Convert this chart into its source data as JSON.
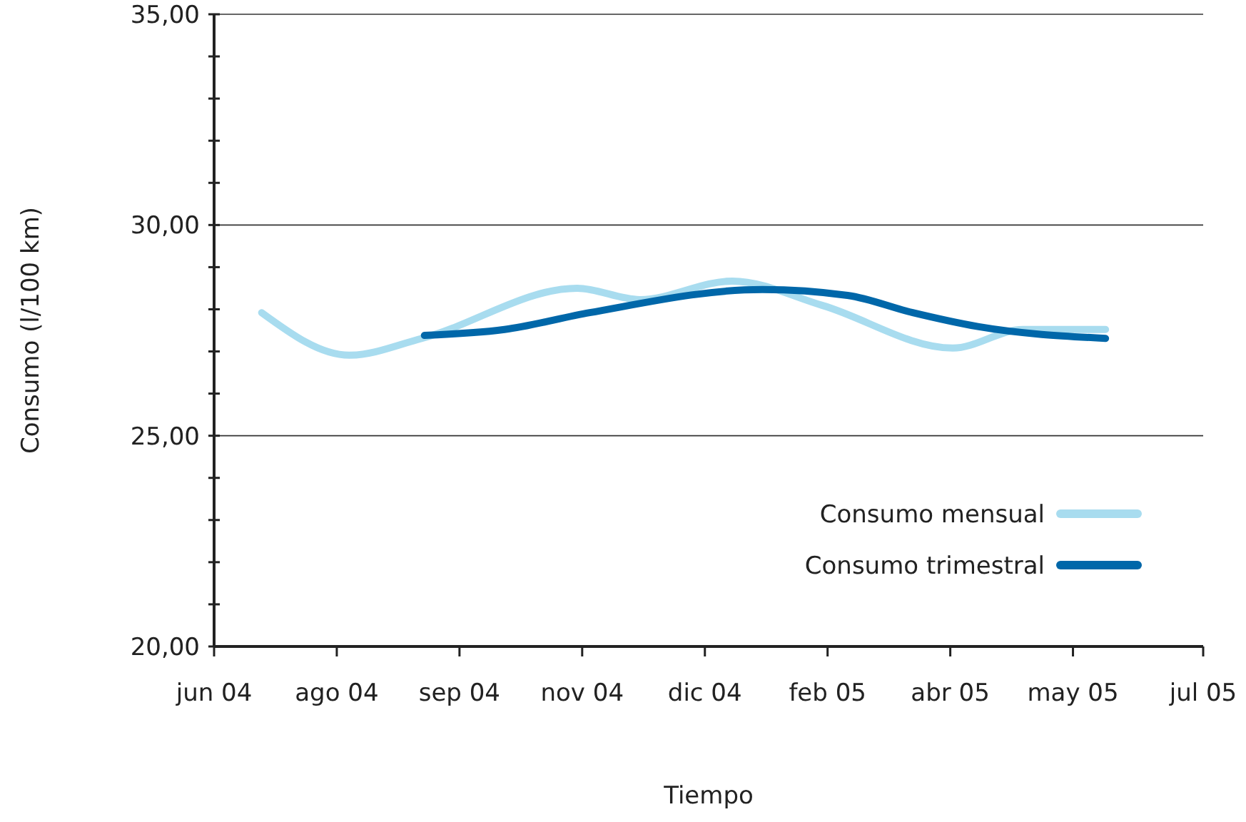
{
  "chart_data": {
    "type": "line",
    "xlabel": "Tiempo",
    "ylabel": "Consumo (l/100 km)",
    "xlim": [
      "2004-06-15",
      "2005-07-15"
    ],
    "xticks": [
      {
        "value": "2004-06-15",
        "label": "jun 04"
      },
      {
        "value": "2004-08-03",
        "label": "ago 04"
      },
      {
        "value": "2004-09-21",
        "label": "sep 04"
      },
      {
        "value": "2004-11-09",
        "label": "nov 04"
      },
      {
        "value": "2004-12-28",
        "label": "dic 04"
      },
      {
        "value": "2005-02-15",
        "label": "feb 05"
      },
      {
        "value": "2005-04-05",
        "label": "abr 05"
      },
      {
        "value": "2005-05-24",
        "label": "may 05"
      },
      {
        "value": "2005-07-15",
        "label": "jul 05"
      }
    ],
    "ylim": [
      20,
      35
    ],
    "yticks": [
      {
        "value": 20,
        "label": "20,00"
      },
      {
        "value": 21,
        "label": null
      },
      {
        "value": 22,
        "label": null
      },
      {
        "value": 23,
        "label": null
      },
      {
        "value": 24,
        "label": null
      },
      {
        "value": 25,
        "label": "25,00"
      },
      {
        "value": 26,
        "label": null
      },
      {
        "value": 27,
        "label": null
      },
      {
        "value": 28,
        "label": null
      },
      {
        "value": 29,
        "label": null
      },
      {
        "value": 30,
        "label": "30,00"
      },
      {
        "value": 31,
        "label": null
      },
      {
        "value": 32,
        "label": null
      },
      {
        "value": 33,
        "label": null
      },
      {
        "value": 34,
        "label": null
      },
      {
        "value": 35,
        "label": "35,00"
      }
    ],
    "grid": "y",
    "legend": "right",
    "marker": "none",
    "series": [
      {
        "name": "Consumo mensual",
        "color": "#a8dcef",
        "x": [
          "2004-07-04",
          "2004-08-08",
          "2004-09-06",
          "2004-11-07",
          "2004-12-02",
          "2005-01-08",
          "2005-02-13",
          "2005-04-06",
          "2005-05-04",
          "2005-06-06"
        ],
        "values": [
          27.92,
          26.91,
          27.31,
          28.5,
          28.23,
          28.67,
          28.09,
          27.08,
          27.52,
          27.52
        ]
      },
      {
        "name": "Consumo trimestral",
        "color": "#0067a9",
        "x": [
          "2004-09-07",
          "2004-10-09",
          "2004-11-12",
          "2005-01-20",
          "2005-02-23",
          "2005-03-21",
          "2005-04-16",
          "2005-06-06"
        ],
        "values": [
          27.38,
          27.52,
          27.92,
          28.47,
          28.33,
          27.92,
          27.59,
          27.31
        ]
      }
    ]
  }
}
